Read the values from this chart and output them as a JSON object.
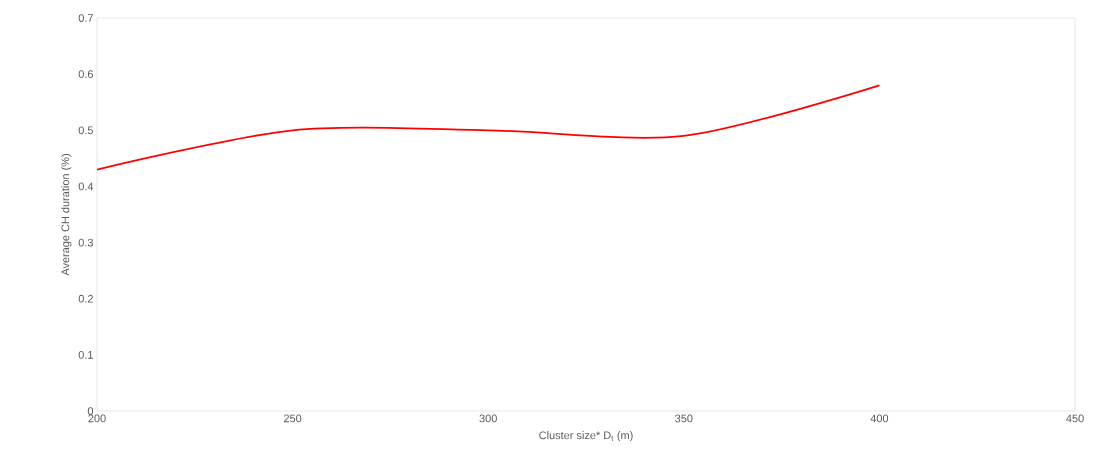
{
  "chart_data": {
    "type": "line",
    "xlabel": "Cluster size* D$_{t}$ (m)",
    "ylabel": "Average CH duration (%)",
    "x": [
      200,
      250,
      300,
      350,
      400
    ],
    "series": [
      {
        "color": "#ff0000",
        "values": [
          0.43,
          0.5,
          0.5,
          0.49,
          0.58
        ]
      }
    ],
    "xlim": [
      200,
      450
    ],
    "xticks": [
      200,
      250,
      300,
      350,
      400,
      450
    ],
    "ylim": [
      0,
      0.7
    ],
    "yticks": [
      0,
      0.1,
      0.2,
      0.3,
      0.4,
      0.5,
      0.6,
      0.7
    ],
    "grid": false,
    "marker": "none",
    "line_style": "solid"
  }
}
